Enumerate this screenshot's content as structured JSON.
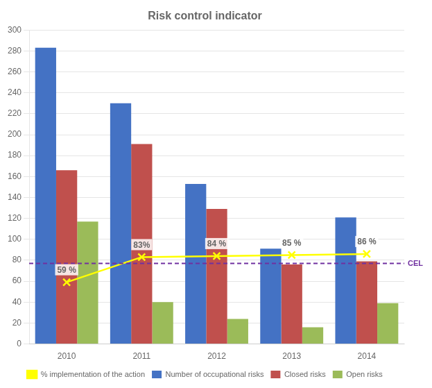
{
  "chart_data": {
    "type": "bar",
    "title": "Risk control indicator",
    "categories": [
      "2010",
      "2011",
      "2012",
      "2013",
      "2014"
    ],
    "series": [
      {
        "name": "Number of occupational risks",
        "color": "#4472C4",
        "values": [
          283,
          230,
          153,
          91,
          121
        ]
      },
      {
        "name": "Closed risks",
        "color": "#C0504D",
        "values": [
          166,
          191,
          129,
          76,
          79
        ]
      },
      {
        "name": "Open risks",
        "color": "#9BBB59",
        "values": [
          117,
          40,
          24,
          16,
          39
        ]
      },
      {
        "name": "% implementation of the action",
        "type": "line",
        "color": "#FFFF00",
        "marker": "x",
        "values": [
          59,
          83,
          84,
          85,
          86
        ],
        "data_labels": true,
        "value_labels": [
          "59 %",
          "83%",
          "84 %",
          "85 %",
          "86 %"
        ]
      }
    ],
    "annotations": [
      {
        "label": "CEL",
        "y": 77,
        "color": "#7030A0",
        "line_style": "dashed"
      }
    ],
    "ylim": [
      0,
      300
    ],
    "yticks": [
      0,
      20,
      40,
      60,
      80,
      100,
      120,
      140,
      160,
      180,
      200,
      220,
      240,
      260,
      280,
      300
    ],
    "grid": true,
    "legend": "bottom"
  }
}
